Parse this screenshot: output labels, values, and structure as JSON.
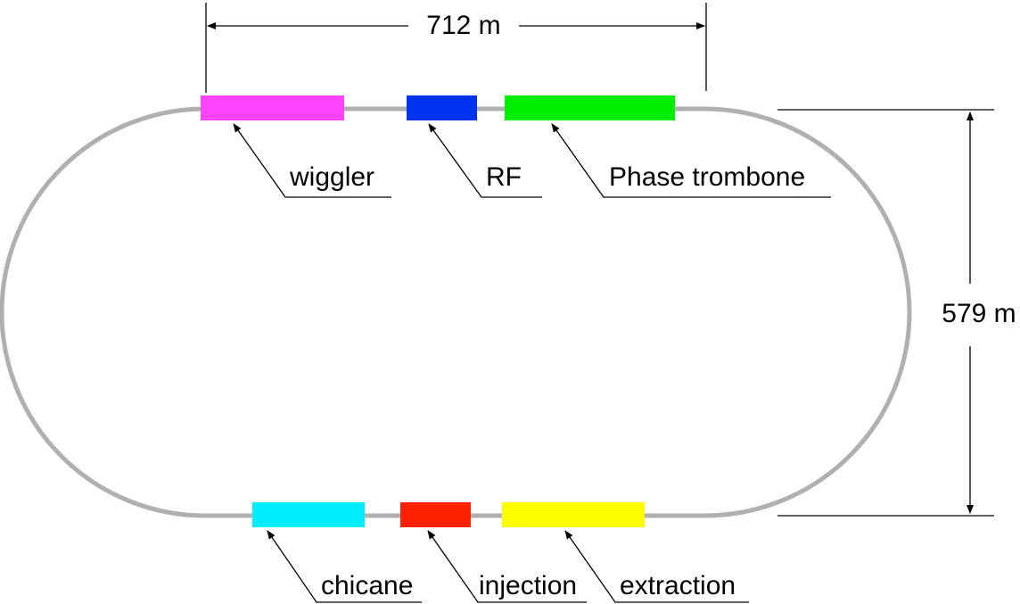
{
  "dimensions": {
    "width_label": "712 m",
    "height_label": "579 m"
  },
  "components": [
    {
      "id": "wiggler",
      "label": "wiggler",
      "color": "#ff44ff"
    },
    {
      "id": "rf",
      "label": "RF",
      "color": "#0033ee"
    },
    {
      "id": "phase-trombone",
      "label": "Phase trombone",
      "color": "#00ee00"
    },
    {
      "id": "chicane",
      "label": "chicane",
      "color": "#00eeff"
    },
    {
      "id": "injection",
      "label": "injection",
      "color": "#ff2200"
    },
    {
      "id": "extraction",
      "label": "extraction",
      "color": "#ffff00"
    }
  ],
  "ring_color": "#b0b0b0"
}
